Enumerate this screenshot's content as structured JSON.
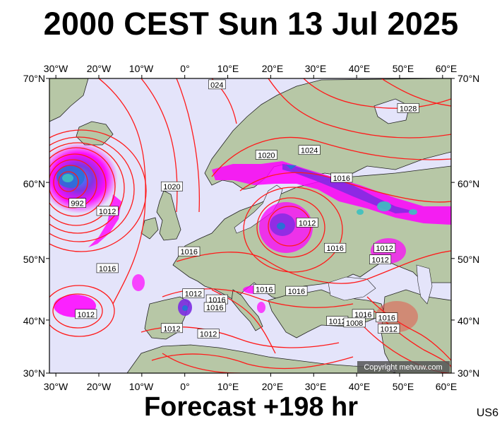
{
  "header": {
    "title": "2000 CEST Sun 13 Jul 2025"
  },
  "footer": {
    "forecast": "Forecast +198 hr",
    "model": "US6"
  },
  "map": {
    "copyright": "Copyright metvuw.com",
    "lon_ticks": [
      "30°W",
      "20°W",
      "10°W",
      "0°",
      "10°E",
      "20°E",
      "30°E",
      "40°E",
      "50°E",
      "60°E"
    ],
    "lat_ticks": [
      "70°N",
      "60°N",
      "50°N",
      "40°N",
      "30°N"
    ],
    "isobar_labels": [
      {
        "text": "992",
        "lon": -25,
        "lat": 57.5
      },
      {
        "text": "1012",
        "lon": -18,
        "lat": 56.5
      },
      {
        "text": "1016",
        "lon": -18,
        "lat": 48.5
      },
      {
        "text": "1012",
        "lon": -23,
        "lat": 41.0
      },
      {
        "text": "1020",
        "lon": -3,
        "lat": 59.5
      },
      {
        "text": "024",
        "lon": 7.5,
        "lat": 69.5
      },
      {
        "text": "1028",
        "lon": 52,
        "lat": 67.5
      },
      {
        "text": "1024",
        "lon": 29,
        "lat": 63.5
      },
      {
        "text": "1020",
        "lon": 19,
        "lat": 63.0
      },
      {
        "text": "1016",
        "lon": 36.5,
        "lat": 60.5
      },
      {
        "text": "1012",
        "lon": 28.5,
        "lat": 55.0
      },
      {
        "text": "1016",
        "lon": 35,
        "lat": 51.5
      },
      {
        "text": "1012",
        "lon": 46.5,
        "lat": 51.5
      },
      {
        "text": "1012",
        "lon": 45.5,
        "lat": 49.8
      },
      {
        "text": "1016",
        "lon": 1,
        "lat": 51.0
      },
      {
        "text": "1012",
        "lon": 2,
        "lat": 44.5
      },
      {
        "text": "1016",
        "lon": 7.5,
        "lat": 43.5
      },
      {
        "text": "1016",
        "lon": 7,
        "lat": 42.2
      },
      {
        "text": "1016",
        "lon": 18.5,
        "lat": 45.2
      },
      {
        "text": "1016",
        "lon": 26,
        "lat": 44.9
      },
      {
        "text": "1012",
        "lon": -3,
        "lat": 38.5
      },
      {
        "text": "1012",
        "lon": 5.5,
        "lat": 37.5
      },
      {
        "text": "1016",
        "lon": 41.5,
        "lat": 41.0
      },
      {
        "text": "1012",
        "lon": 35.5,
        "lat": 39.8
      },
      {
        "text": "1008",
        "lon": 39.5,
        "lat": 39.5
      },
      {
        "text": "1016",
        "lon": 47,
        "lat": 40.4
      },
      {
        "text": "1012",
        "lon": 47.5,
        "lat": 38.4
      }
    ]
  },
  "colors": {
    "sea": "#e4e4fa",
    "land": "#b7c7a6",
    "isobar": "#ff1a1a",
    "rain_light": "#ff00ff",
    "rain_mid": "#8a2be2",
    "rain_heavy": "#2a6fd6"
  }
}
